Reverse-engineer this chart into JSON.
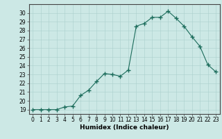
{
  "x": [
    0,
    1,
    2,
    3,
    4,
    5,
    6,
    7,
    8,
    9,
    10,
    11,
    12,
    13,
    14,
    15,
    16,
    17,
    18,
    19,
    20,
    21,
    22,
    23
  ],
  "y": [
    19,
    19,
    19,
    19,
    19.3,
    19.4,
    20.6,
    21.2,
    22.2,
    23.1,
    23.0,
    22.8,
    23.5,
    28.5,
    28.8,
    29.5,
    29.5,
    30.2,
    29.4,
    28.5,
    27.3,
    26.2,
    24.1,
    23.3
  ],
  "line_color": "#1a6b5a",
  "marker": "+",
  "marker_size": 4,
  "bg_color": "#cce8e5",
  "grid_color": "#aacfcc",
  "xlabel": "Humidex (Indice chaleur)",
  "xlim": [
    -0.5,
    23.5
  ],
  "ylim": [
    18.5,
    31
  ],
  "yticks": [
    19,
    20,
    21,
    22,
    23,
    24,
    25,
    26,
    27,
    28,
    29,
    30
  ],
  "xticks": [
    0,
    1,
    2,
    3,
    4,
    5,
    6,
    7,
    8,
    9,
    10,
    11,
    12,
    13,
    14,
    15,
    16,
    17,
    18,
    19,
    20,
    21,
    22,
    23
  ],
  "tick_fontsize": 5.5,
  "label_fontsize": 6.5
}
